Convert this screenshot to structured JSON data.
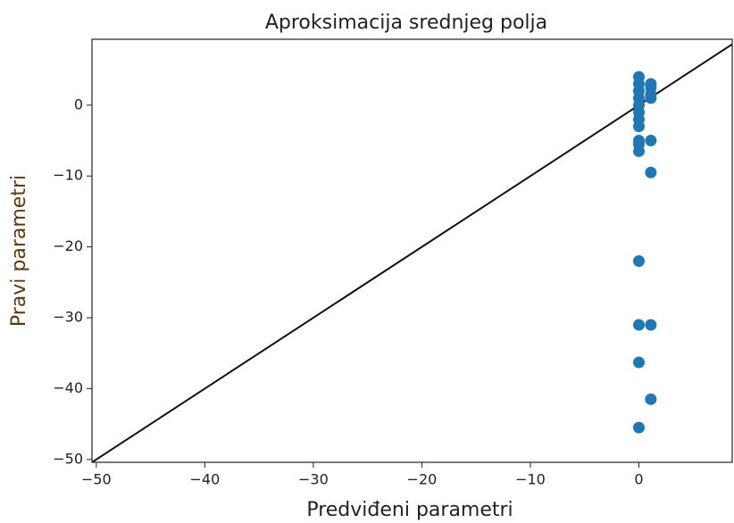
{
  "chart_data": {
    "type": "scatter",
    "title": "Aproksimacija srednjeg polja",
    "xlabel": "Predviđeni parametri",
    "ylabel": "Pravi parametri",
    "ylabel_color": "#5c3a12",
    "color": "#1f77b4",
    "x": [
      0,
      0,
      0,
      0,
      0,
      0,
      0,
      0,
      0,
      0,
      0,
      0,
      0,
      0,
      0,
      1.1,
      1.1,
      1.1,
      1.1,
      1.1,
      1.1,
      1.1,
      1.1
    ],
    "values": [
      4,
      3,
      2,
      1,
      0,
      -1,
      -2,
      -3,
      -5,
      -5.5,
      -6.5,
      -22,
      -31,
      -36.3,
      -45.5,
      3,
      2.5,
      1.5,
      1,
      -5,
      -9.5,
      -31,
      -41.5
    ],
    "reference_line": {
      "x": [
        -50.4,
        9.3
      ],
      "y": [
        -50.4,
        9.3
      ],
      "color": "#111111"
    },
    "xlim": [
      -50.4,
      8.6
    ],
    "ylim": [
      -50.4,
      9.3
    ],
    "xticks": [
      {
        "value": -50,
        "label": "−50"
      },
      {
        "value": -40,
        "label": "−40"
      },
      {
        "value": -30,
        "label": "−30"
      },
      {
        "value": -20,
        "label": "−20"
      },
      {
        "value": -10,
        "label": "−10"
      },
      0
    ],
    "yticks": [
      0,
      {
        "value": -10,
        "label": "−10"
      },
      {
        "value": -20,
        "label": "−20"
      },
      {
        "value": -30,
        "label": "−30"
      },
      {
        "value": -40,
        "label": "−40"
      },
      {
        "value": -50,
        "label": "−50"
      }
    ]
  }
}
